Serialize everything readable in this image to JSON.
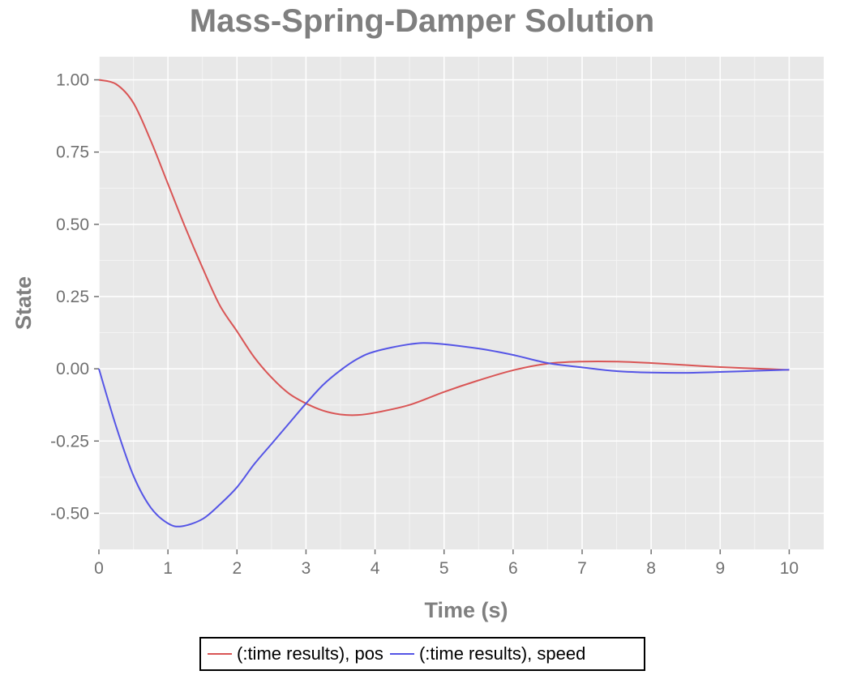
{
  "chart_data": {
    "type": "line",
    "title": "Mass-Spring-Damper Solution",
    "xlabel": "Time (s)",
    "ylabel": "State",
    "xlim": [
      0,
      10.5
    ],
    "ylim": [
      -0.625,
      1.08
    ],
    "xticks": [
      0,
      1,
      2,
      3,
      4,
      5,
      6,
      7,
      8,
      9,
      10
    ],
    "xtick_labels": [
      "0",
      "1",
      "2",
      "3",
      "4",
      "5",
      "6",
      "7",
      "8",
      "9",
      "10"
    ],
    "yticks": [
      1.0,
      0.75,
      0.5,
      0.25,
      0.0,
      -0.25,
      -0.5
    ],
    "ytick_labels": [
      "1.00",
      "0.75",
      "0.50",
      "0.25",
      "0.00",
      "-0.25",
      "-0.50"
    ],
    "grid": true,
    "legend_position": "bottom",
    "series": [
      {
        "name": "(:time results), pos",
        "color": "#d95555",
        "x": [
          0,
          0.25,
          0.5,
          0.75,
          1.0,
          1.25,
          1.5,
          1.75,
          2.0,
          2.25,
          2.5,
          2.75,
          3.0,
          3.25,
          3.5,
          3.75,
          4.0,
          4.5,
          5.0,
          5.5,
          6.0,
          6.5,
          7.0,
          7.5,
          8.0,
          8.5,
          9.0,
          9.5,
          10.0
        ],
        "y": [
          1.0,
          0.985,
          0.92,
          0.79,
          0.64,
          0.49,
          0.35,
          0.22,
          0.13,
          0.04,
          -0.03,
          -0.085,
          -0.12,
          -0.145,
          -0.158,
          -0.16,
          -0.152,
          -0.125,
          -0.08,
          -0.04,
          -0.005,
          0.018,
          0.025,
          0.025,
          0.02,
          0.013,
          0.006,
          0.001,
          -0.004
        ]
      },
      {
        "name": "(:time results), speed",
        "color": "#5555e6",
        "x": [
          0,
          0.25,
          0.5,
          0.75,
          1.0,
          1.2,
          1.5,
          1.75,
          2.0,
          2.25,
          2.5,
          2.75,
          3.0,
          3.25,
          3.5,
          3.75,
          4.0,
          4.5,
          4.85,
          5.5,
          6.0,
          6.5,
          7.0,
          7.5,
          8.0,
          8.5,
          9.0,
          9.5,
          10.0
        ],
        "y": [
          0.0,
          -0.2,
          -0.37,
          -0.48,
          -0.535,
          -0.545,
          -0.52,
          -0.47,
          -0.41,
          -0.33,
          -0.26,
          -0.19,
          -0.12,
          -0.055,
          -0.005,
          0.035,
          0.06,
          0.085,
          0.088,
          0.07,
          0.048,
          0.02,
          0.005,
          -0.008,
          -0.013,
          -0.014,
          -0.011,
          -0.007,
          -0.003
        ]
      }
    ]
  }
}
